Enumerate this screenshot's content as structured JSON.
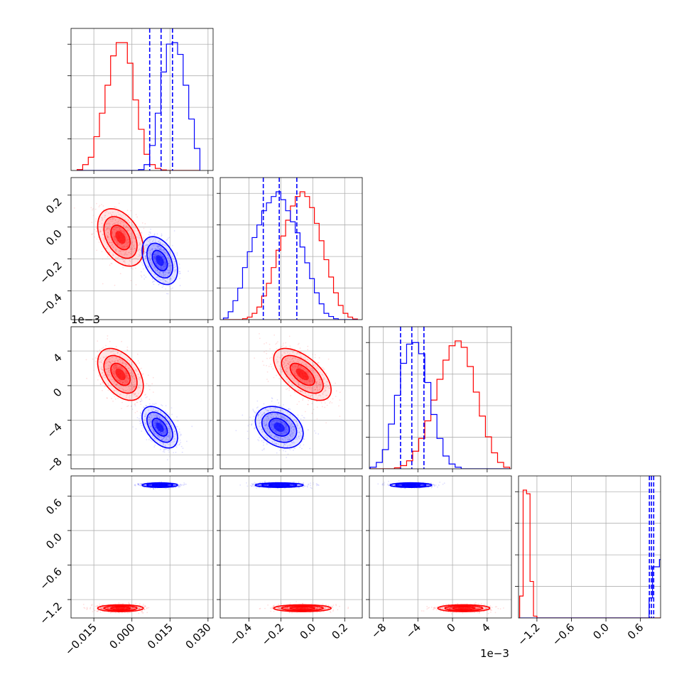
{
  "figure": {
    "offset_label_y_row2": "1e−3",
    "offset_label_x_col2": "1e−3"
  },
  "colors": {
    "series_a": "#0000ff",
    "series_b": "#ff0000",
    "grid": "#b0b0b0",
    "frame": "#000000"
  },
  "chart_data": {
    "type": "scatter",
    "subtype": "corner_plot",
    "grid": true,
    "parameters": [
      {
        "ticks": [
          -0.015,
          0.0,
          0.015,
          0.03
        ],
        "tick_labels": [
          "−0.015",
          "0.000",
          "0.015",
          "0.030"
        ],
        "lim": [
          -0.024,
          0.032
        ]
      },
      {
        "ticks": [
          -0.4,
          -0.2,
          0.0,
          0.2
        ],
        "tick_labels": [
          "−0.4",
          "−0.2",
          "0.0",
          "0.2"
        ],
        "lim": [
          -0.58,
          0.31
        ]
      },
      {
        "ticks": [
          -8,
          -4,
          0,
          4
        ],
        "tick_labels": [
          "−8",
          "−4",
          "0",
          "4"
        ],
        "lim": [
          -9.6,
          6.8
        ],
        "scale_note": "1e−3"
      },
      {
        "ticks": [
          -1.2,
          -0.6,
          0.0,
          0.6
        ],
        "tick_labels": [
          "−1.2",
          "−0.6",
          "0.0",
          "0.6"
        ],
        "lim": [
          -1.52,
          0.95
        ]
      }
    ],
    "series": [
      {
        "color": "#0000ff",
        "means": [
          0.011,
          -0.21,
          -4.8,
          0.79
        ],
        "stds": [
          0.0035,
          0.075,
          1.2,
          0.02
        ],
        "quantile_lines": [
          [
            0.007,
            0.0115,
            0.016
          ],
          [
            -0.31,
            -0.21,
            -0.1
          ],
          [
            -6.0,
            -4.7,
            -3.3
          ],
          [
            0.755,
            0.79,
            0.83
          ]
        ]
      },
      {
        "color": "#ff0000",
        "means": [
          -0.0045,
          -0.065,
          1.3,
          -1.35
        ],
        "stds": [
          0.0045,
          0.09,
          1.5,
          0.03
        ]
      }
    ],
    "histograms": [
      {
        "edges": [
          -0.0216,
          -0.0194,
          -0.0172,
          -0.015,
          -0.0128,
          -0.0106,
          -0.0084,
          -0.0062,
          -0.004,
          -0.0018,
          0.0004,
          0.0026,
          0.0048,
          0.007,
          0.0092,
          0.0114,
          0.0136,
          0.0158,
          0.018,
          0.0202,
          0.0224,
          0.0246,
          0.0268
        ],
        "series_b": [
          3,
          20,
          45,
          115,
          195,
          290,
          390,
          435,
          435,
          365,
          240,
          140,
          55,
          20,
          7,
          2,
          0,
          0,
          0,
          0,
          0,
          0
        ],
        "series_a": [
          0,
          0,
          0,
          0,
          0,
          0,
          0,
          0,
          0,
          0,
          0,
          3,
          20,
          85,
          195,
          335,
          430,
          435,
          395,
          290,
          175,
          75
        ]
      },
      {
        "edges": [
          -0.56,
          -0.53,
          -0.5,
          -0.47,
          -0.44,
          -0.41,
          -0.38,
          -0.35,
          -0.32,
          -0.29,
          -0.26,
          -0.23,
          -0.2,
          -0.17,
          -0.14,
          -0.11,
          -0.08,
          -0.05,
          -0.02,
          0.01,
          0.04,
          0.07,
          0.1,
          0.13,
          0.16,
          0.19,
          0.22,
          0.25,
          0.28
        ],
        "series_a": [
          5,
          25,
          60,
          100,
          165,
          215,
          260,
          300,
          345,
          370,
          390,
          405,
          380,
          345,
          310,
          275,
          230,
          180,
          130,
          85,
          50,
          20,
          10,
          3,
          0,
          0,
          0,
          0
        ],
        "series_b": [
          0,
          0,
          0,
          0,
          3,
          8,
          20,
          40,
          75,
          115,
          165,
          220,
          265,
          315,
          360,
          390,
          405,
          390,
          355,
          305,
          250,
          190,
          135,
          85,
          45,
          20,
          8,
          2
        ]
      },
      {
        "edges": [
          -9.5,
          -8.8,
          -8.1,
          -7.4,
          -6.7,
          -6.0,
          -5.3,
          -4.6,
          -3.9,
          -3.2,
          -2.5,
          -1.8,
          -1.1,
          -0.4,
          0.3,
          1.0,
          1.7,
          2.4,
          3.1,
          3.8,
          4.5,
          5.2,
          5.9,
          6.6
        ],
        "series_a": [
          5,
          20,
          60,
          140,
          230,
          330,
          390,
          395,
          360,
          270,
          170,
          95,
          40,
          15,
          5,
          0,
          0,
          0,
          0,
          0,
          0,
          0,
          0
        ],
        "series_b": [
          0,
          0,
          0,
          0,
          3,
          10,
          25,
          55,
          95,
          150,
          215,
          280,
          340,
          385,
          400,
          380,
          320,
          240,
          165,
          100,
          50,
          20,
          5
        ]
      },
      {
        "edges": [
          -1.5,
          -1.47,
          -1.44,
          -1.41,
          -1.38,
          -1.35,
          -1.32,
          -1.29,
          -1.26,
          -1.23,
          -1.2,
          -1.17,
          -1.14,
          -1.11,
          -1.08,
          -1.05,
          -1.02,
          -0.99,
          -0.96,
          -0.93,
          -0.9,
          -0.87,
          -0.84,
          -0.81,
          -0.78,
          -0.75,
          -0.72,
          -0.69,
          -0.66,
          -0.63,
          -0.6,
          -0.57,
          -0.54,
          -0.51,
          -0.48,
          -0.45,
          -0.42,
          -0.39,
          -0.36,
          -0.33,
          -0.3,
          -0.27,
          -0.24,
          -0.21,
          -0.18,
          -0.15,
          -0.12,
          -0.09,
          -0.06,
          -0.03,
          0.0,
          0.03,
          0.06,
          0.09,
          0.12,
          0.15,
          0.18,
          0.21,
          0.24,
          0.27,
          0.3,
          0.33,
          0.36,
          0.39,
          0.42,
          0.45,
          0.48,
          0.51,
          0.54,
          0.57,
          0.6,
          0.63,
          0.66,
          0.69,
          0.72,
          0.75,
          0.78,
          0.81,
          0.84,
          0.87,
          0.9,
          0.93,
          0.96
        ],
        "series_b": [
          60,
          60,
          350,
          350,
          340,
          340,
          100,
          100,
          5,
          5,
          0,
          0,
          0,
          0,
          0,
          0,
          0,
          0,
          0,
          0,
          0,
          0,
          0,
          0,
          0,
          0,
          0,
          0,
          0,
          0,
          0,
          0,
          0,
          0,
          0,
          0,
          0,
          0,
          0,
          0,
          0,
          0,
          0,
          0,
          0,
          0,
          0,
          0,
          0,
          0,
          0,
          0,
          0,
          0,
          0,
          0,
          0,
          0,
          0,
          0,
          0,
          0,
          0,
          0,
          0,
          0,
          0,
          0,
          0,
          0,
          0,
          0,
          0,
          0,
          0,
          0,
          0,
          0,
          0,
          0,
          0,
          0
        ],
        "series_a": [
          0,
          0,
          0,
          0,
          0,
          0,
          0,
          0,
          0,
          0,
          0,
          0,
          0,
          0,
          0,
          0,
          0,
          0,
          0,
          0,
          0,
          0,
          0,
          0,
          0,
          0,
          0,
          0,
          0,
          0,
          0,
          0,
          0,
          0,
          0,
          0,
          0,
          0,
          0,
          0,
          0,
          0,
          0,
          0,
          0,
          0,
          0,
          0,
          0,
          0,
          0,
          0,
          0,
          0,
          0,
          0,
          0,
          0,
          0,
          0,
          0,
          0,
          0,
          0,
          0,
          0,
          0,
          0,
          0,
          0,
          0,
          0,
          0,
          0,
          0,
          55,
          55,
          140,
          140,
          140,
          140,
          160,
          160
        ]
      }
    ]
  }
}
